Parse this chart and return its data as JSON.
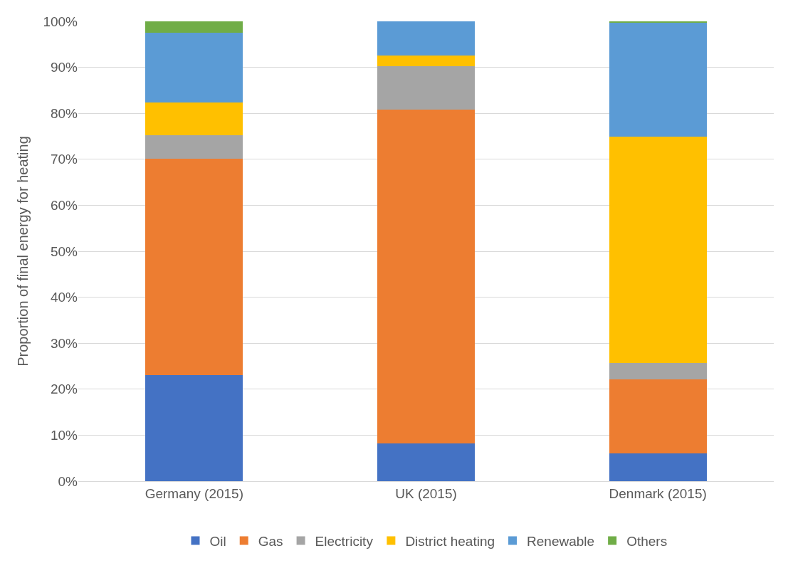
{
  "chart_data": {
    "type": "bar",
    "stacked": true,
    "ylabel": "Proportion of final energy for heating",
    "categories": [
      "Germany (2015)",
      "UK (2015)",
      "Denmark (2015)"
    ],
    "series": [
      {
        "name": "Oil",
        "color": "#4472c4",
        "values": [
          23.0,
          8.2,
          6.0
        ]
      },
      {
        "name": "Gas",
        "color": "#ed7d31",
        "values": [
          47.2,
          72.6,
          16.2
        ]
      },
      {
        "name": "Electricity",
        "color": "#a5a5a5",
        "values": [
          5.1,
          9.4,
          3.5
        ]
      },
      {
        "name": "District heating",
        "color": "#ffc000",
        "values": [
          7.0,
          2.3,
          49.3
        ]
      },
      {
        "name": "Renewable",
        "color": "#5b9bd5",
        "values": [
          15.2,
          7.5,
          24.7
        ]
      },
      {
        "name": "Others",
        "color": "#70ad47",
        "values": [
          2.5,
          0,
          0.3
        ]
      }
    ],
    "ylim": [
      0,
      100
    ],
    "yticks": [
      {
        "value": 0,
        "label": "0%"
      },
      {
        "value": 10,
        "label": "10%"
      },
      {
        "value": 20,
        "label": "20%"
      },
      {
        "value": 30,
        "label": "30%"
      },
      {
        "value": 40,
        "label": "40%"
      },
      {
        "value": 50,
        "label": "50%"
      },
      {
        "value": 60,
        "label": "60%"
      },
      {
        "value": 70,
        "label": "70%"
      },
      {
        "value": 80,
        "label": "80%"
      },
      {
        "value": 90,
        "label": "90%"
      },
      {
        "value": 100,
        "label": "100%"
      }
    ],
    "grid": "y",
    "legend": "bottom"
  }
}
